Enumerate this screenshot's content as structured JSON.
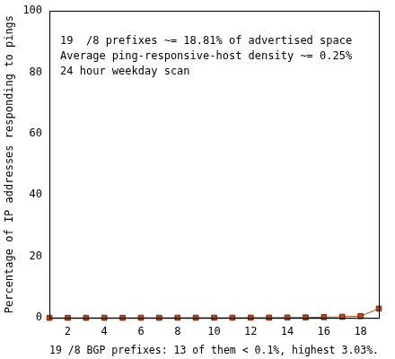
{
  "chart_data": {
    "type": "line",
    "x_label": "19 /8 BGP prefixes: 13 of them < 0.1%, highest 3.03%.",
    "y_label": "Percentage of IP addresses responding to pings",
    "annotations": [
      "19  /8 prefixes ~= 18.81% of advertised space",
      "Average ping-responsive-host density ~= 0.25%",
      "24 hour weekday scan"
    ],
    "x": [
      1,
      2,
      3,
      4,
      5,
      6,
      7,
      8,
      9,
      10,
      11,
      12,
      13,
      14,
      15,
      16,
      17,
      18,
      19
    ],
    "values": [
      0.02,
      0.03,
      0.02,
      0.04,
      0.03,
      0.05,
      0.04,
      0.06,
      0.05,
      0.07,
      0.06,
      0.08,
      0.09,
      0.12,
      0.15,
      0.25,
      0.35,
      0.6,
      3.03
    ],
    "color": "#b8450f",
    "marker": "square",
    "xlim": [
      1,
      19
    ],
    "xticks": [
      2,
      4,
      6,
      8,
      10,
      12,
      14,
      16,
      18
    ],
    "ylim": [
      0,
      100
    ],
    "yticks": [
      0,
      20,
      40,
      60,
      80,
      100
    ],
    "grid": false
  }
}
